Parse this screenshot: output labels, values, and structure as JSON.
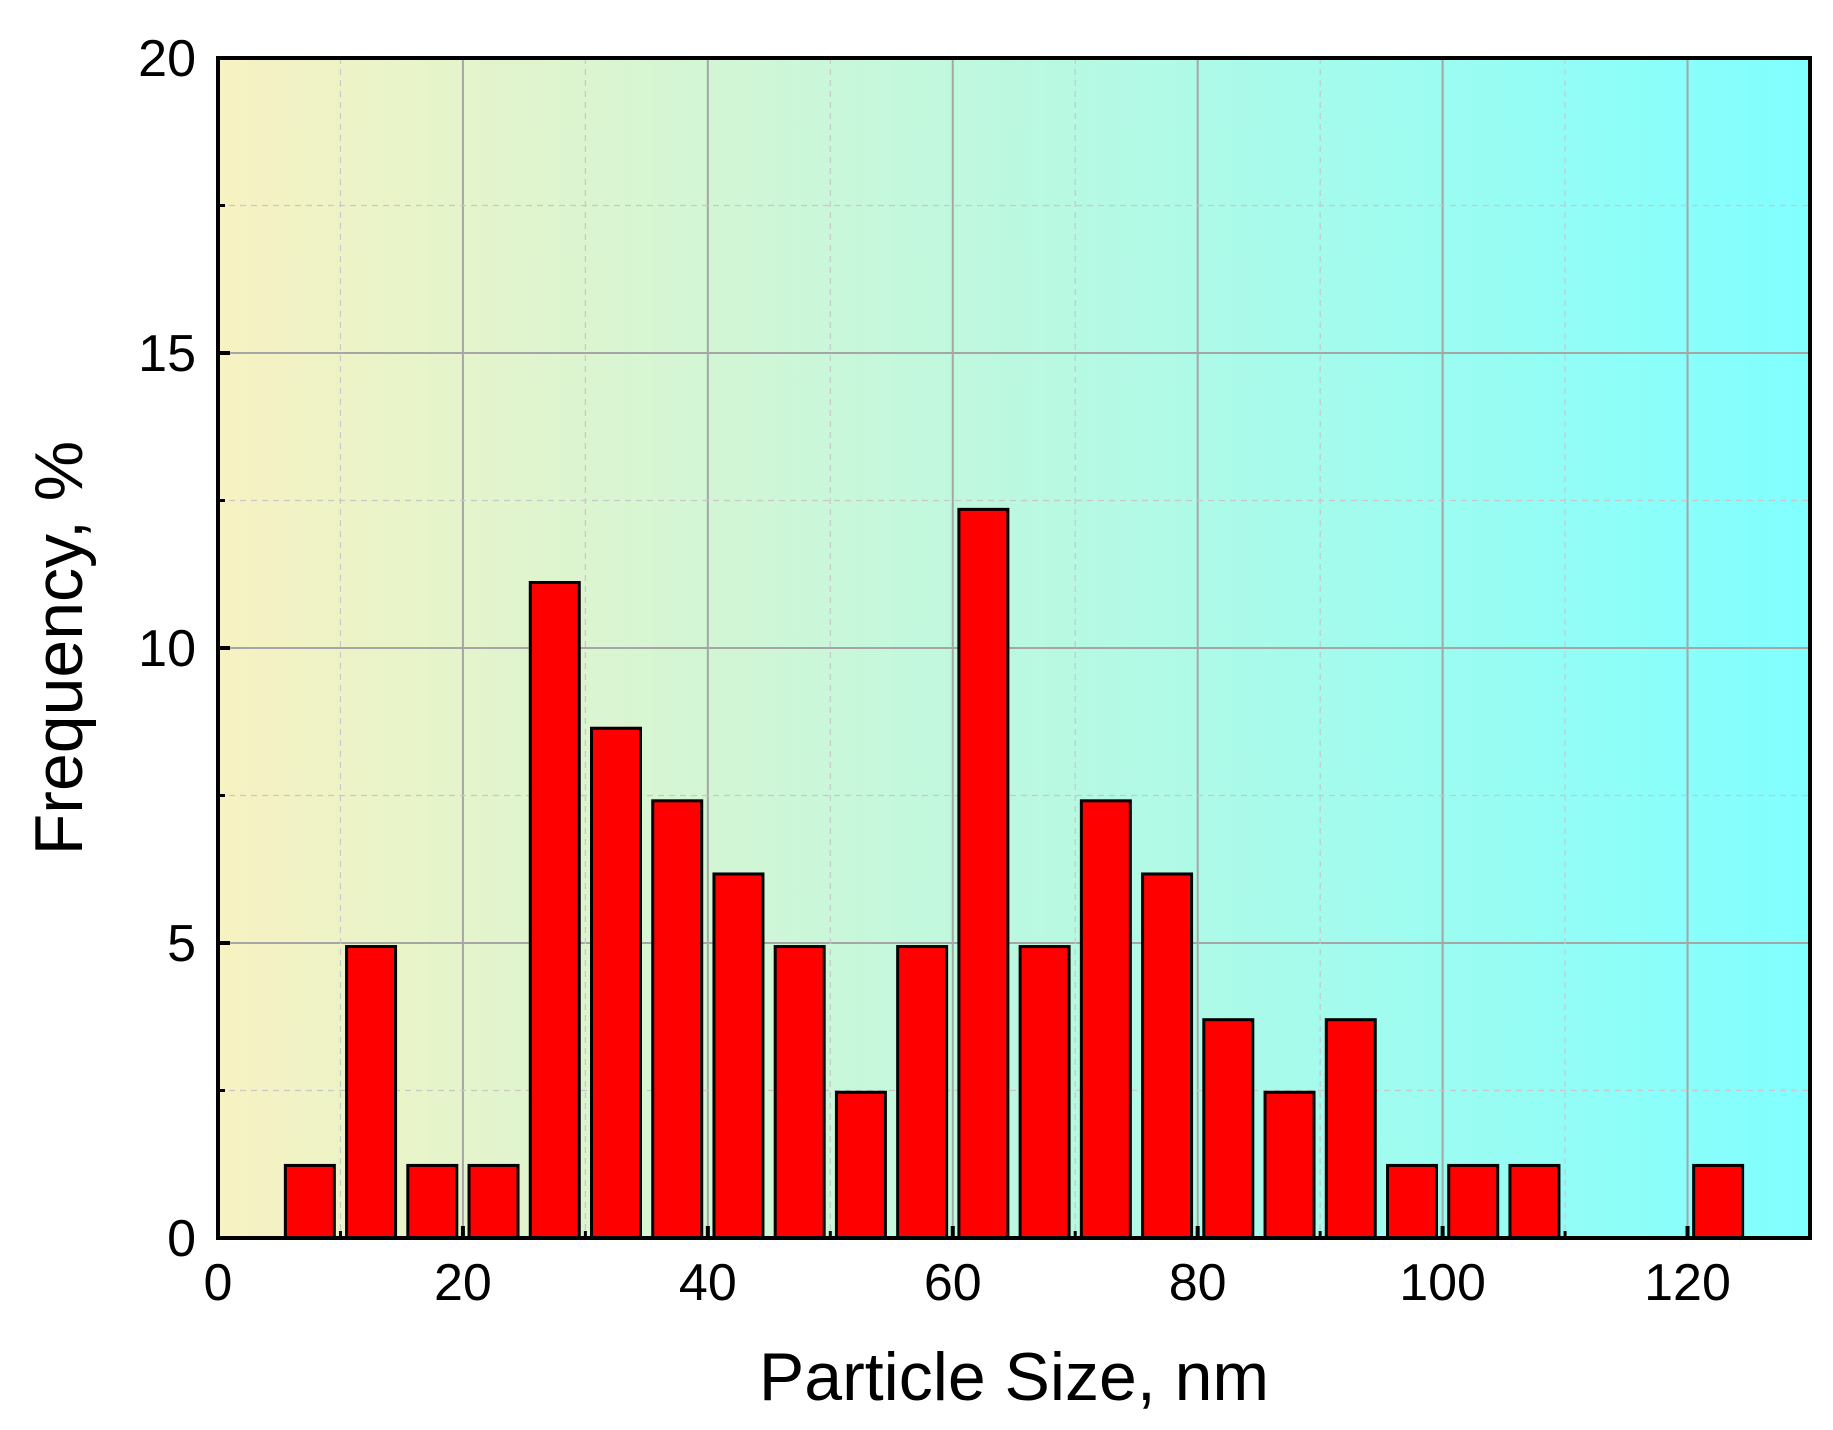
{
  "chart_data": {
    "type": "bar",
    "xlabel": "Particle Size, nm",
    "ylabel": "Frequency, %",
    "xlim": [
      0,
      130
    ],
    "ylim": [
      0,
      20
    ],
    "xticks": [
      0,
      20,
      40,
      60,
      80,
      100,
      120
    ],
    "yticks": [
      0,
      5,
      10,
      15,
      20
    ],
    "grid": true,
    "bar_width": 4,
    "bar_color": "#ff0000",
    "background_gradient": [
      "#f7f2c2",
      "#80ffff"
    ],
    "x": [
      7.5,
      12.5,
      17.5,
      22.5,
      27.5,
      32.5,
      37.5,
      42.5,
      47.5,
      52.5,
      57.5,
      62.5,
      67.5,
      72.5,
      77.5,
      82.5,
      87.5,
      92.5,
      97.5,
      102.5,
      107.5,
      122.5
    ],
    "values": [
      1.23,
      4.94,
      1.23,
      1.23,
      11.11,
      8.64,
      7.41,
      6.17,
      4.94,
      2.47,
      4.94,
      12.35,
      4.94,
      7.41,
      6.17,
      3.7,
      2.47,
      3.7,
      1.23,
      1.23,
      1.23,
      1.23
    ]
  }
}
